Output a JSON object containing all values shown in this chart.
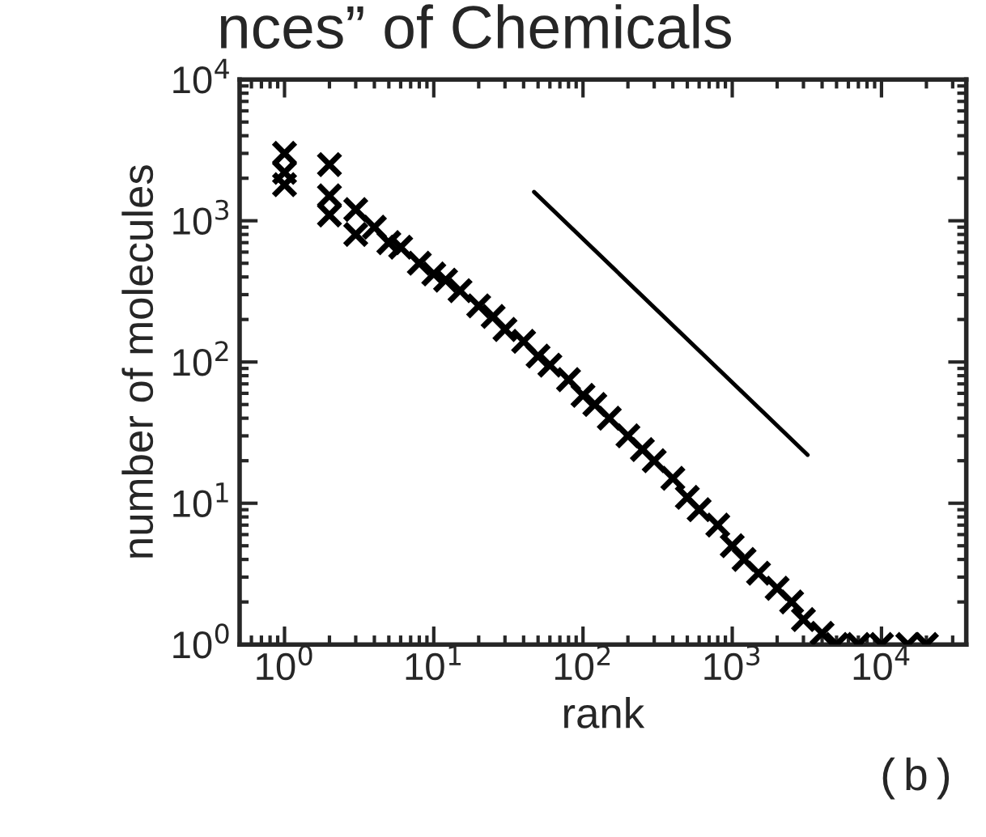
{
  "chart_data": {
    "type": "scatter",
    "title": "nces” of Chemicals",
    "xlabel": "rank",
    "ylabel": "number of molecules",
    "annotations": [
      "(b)"
    ],
    "log": "xy",
    "grid": false,
    "xlim": [
      0.5,
      37000
    ],
    "ylim": [
      1,
      10000
    ],
    "xticks": [
      {
        "value": 1,
        "label": "10$^{0}$"
      },
      {
        "value": 10,
        "label": "10$^{1}$"
      },
      {
        "value": 100,
        "label": "10$^{2}$"
      },
      {
        "value": 1000,
        "label": "10$^{3}$"
      },
      {
        "value": 10000,
        "label": "10$^{4}$"
      }
    ],
    "yticks": [
      {
        "value": 1,
        "label": "10$^{0}$"
      },
      {
        "value": 10,
        "label": "10$^{1}$"
      },
      {
        "value": 100,
        "label": "10$^{2}$"
      },
      {
        "value": 1000,
        "label": "10$^{3}$"
      },
      {
        "value": 10000,
        "label": "10$^{4}$"
      }
    ],
    "series": [
      {
        "marker": "cross",
        "color": "#000000",
        "x": [
          1,
          1,
          1,
          2,
          2,
          2,
          3,
          3,
          4,
          5,
          6,
          8,
          10,
          12,
          15,
          20,
          25,
          30,
          40,
          50,
          60,
          80,
          100,
          120,
          150,
          200,
          250,
          300,
          400,
          500,
          600,
          800,
          1000,
          1200,
          1500,
          2000,
          2500,
          3000,
          4000,
          5000,
          7000,
          10000,
          15000,
          20000
        ],
        "values": [
          3000,
          2200,
          1800,
          2500,
          1500,
          1100,
          1200,
          800,
          900,
          700,
          650,
          500,
          420,
          380,
          320,
          250,
          210,
          170,
          140,
          110,
          95,
          75,
          58,
          50,
          40,
          30,
          24,
          20,
          15,
          11,
          9,
          7,
          5,
          4,
          3.2,
          2.5,
          2,
          1.5,
          1.2,
          1,
          1,
          1,
          1,
          1
        ]
      },
      {
        "type": "line",
        "color": "#000000",
        "x": [
          47,
          3200
        ],
        "values": [
          1600,
          22
        ]
      }
    ]
  }
}
